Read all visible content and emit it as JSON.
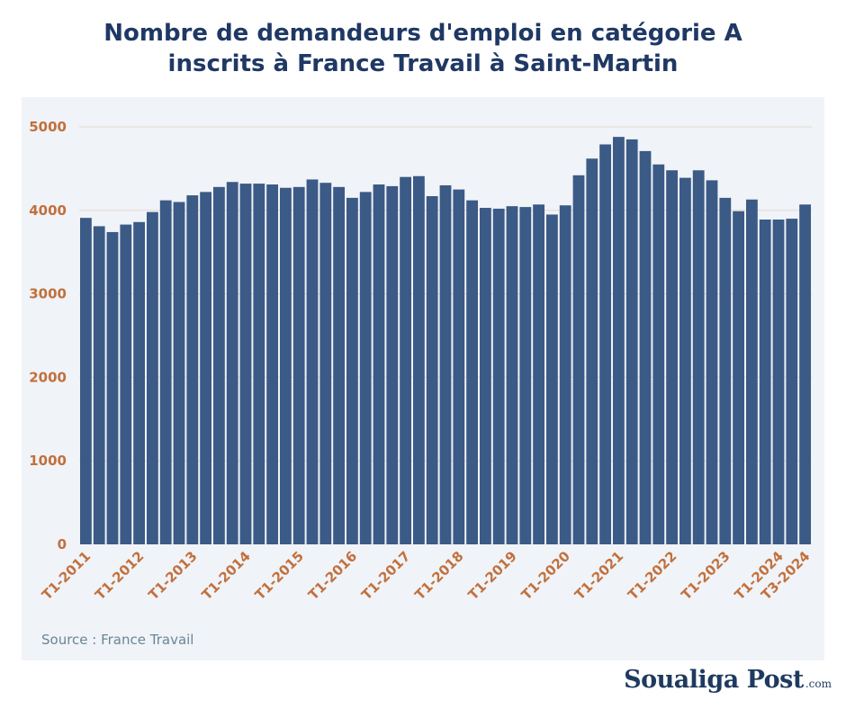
{
  "chart_data": {
    "type": "bar",
    "title_lines": [
      "Nombre de demandeurs d'emploi en catégorie A",
      "inscrits à France Travail à Saint-Martin"
    ],
    "source": "Source : France Travail",
    "ylim": [
      0,
      5000
    ],
    "y_ticks": [
      0,
      1000,
      2000,
      3000,
      4000,
      5000
    ],
    "x_tick_labels": [
      {
        "label": "T1-2011",
        "index": 0
      },
      {
        "label": "T1-2012",
        "index": 4
      },
      {
        "label": "T1-2013",
        "index": 8
      },
      {
        "label": "T1-2014",
        "index": 12
      },
      {
        "label": "T1-2015",
        "index": 16
      },
      {
        "label": "T1-2016",
        "index": 20
      },
      {
        "label": "T1-2017",
        "index": 24
      },
      {
        "label": "T1-2018",
        "index": 28
      },
      {
        "label": "T1-2019",
        "index": 32
      },
      {
        "label": "T1-2020",
        "index": 36
      },
      {
        "label": "T1-2021",
        "index": 40
      },
      {
        "label": "T1-2022",
        "index": 44
      },
      {
        "label": "T1-2023",
        "index": 48
      },
      {
        "label": "T1-2024",
        "index": 52
      },
      {
        "label": "T3-2024",
        "index": 54
      }
    ],
    "categories": [
      "T1-2011",
      "T2-2011",
      "T3-2011",
      "T4-2011",
      "T1-2012",
      "T2-2012",
      "T3-2012",
      "T4-2012",
      "T1-2013",
      "T2-2013",
      "T3-2013",
      "T4-2013",
      "T1-2014",
      "T2-2014",
      "T3-2014",
      "T4-2014",
      "T1-2015",
      "T2-2015",
      "T3-2015",
      "T4-2015",
      "T1-2016",
      "T2-2016",
      "T3-2016",
      "T4-2016",
      "T1-2017",
      "T2-2017",
      "T3-2017",
      "T4-2017",
      "T1-2018",
      "T2-2018",
      "T3-2018",
      "T4-2018",
      "T1-2019",
      "T2-2019",
      "T3-2019",
      "T4-2019",
      "T1-2020",
      "T2-2020",
      "T3-2020",
      "T4-2020",
      "T1-2021",
      "T2-2021",
      "T3-2021",
      "T4-2021",
      "T1-2022",
      "T2-2022",
      "T3-2022",
      "T4-2022",
      "T1-2023",
      "T2-2023",
      "T3-2023",
      "T4-2023",
      "T1-2024",
      "T2-2024",
      "T3-2024"
    ],
    "values": [
      3910,
      3810,
      3740,
      3830,
      3860,
      3980,
      4120,
      4100,
      4180,
      4220,
      4280,
      4340,
      4320,
      4320,
      4310,
      4270,
      4280,
      4370,
      4330,
      4280,
      4150,
      4220,
      4310,
      4290,
      4400,
      4410,
      4170,
      4300,
      4250,
      4120,
      4030,
      4020,
      4050,
      4040,
      4070,
      3950,
      4060,
      4420,
      4620,
      4790,
      4880,
      4850,
      4710,
      4550,
      4480,
      4390,
      4480,
      4360,
      4150,
      3990,
      4130,
      3890,
      3890,
      3900,
      4070
    ],
    "colors": {
      "bar": "#3b5a86",
      "title": "#1f3864",
      "axis_labels": "#c1703d",
      "panel_bg": "#f0f3f7"
    },
    "grid": true
  },
  "logo": {
    "main": "Soualiga Post",
    "suffix": ".com"
  }
}
